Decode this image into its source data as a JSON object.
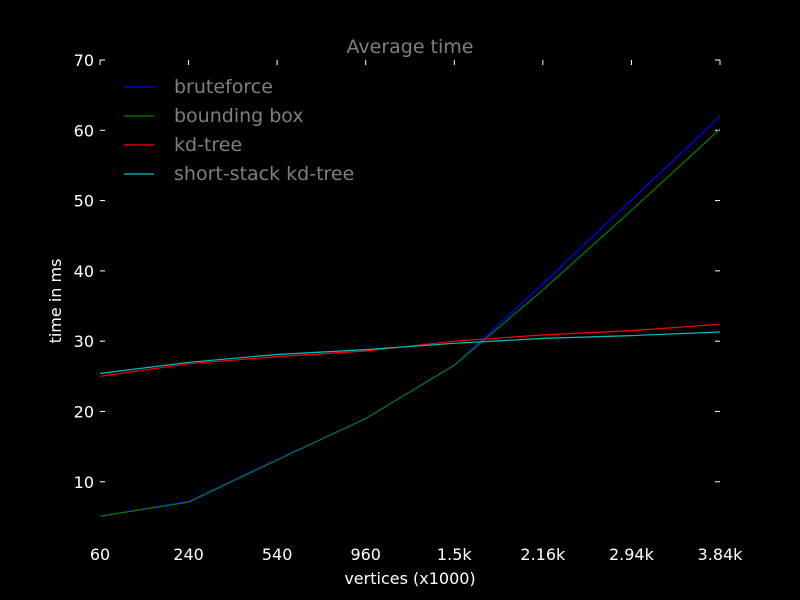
{
  "chart_data": {
    "type": "line",
    "title": "Average time",
    "xlabel": "vertices (x1000)",
    "ylabel": "time in ms",
    "x_tick_labels": [
      "60",
      "240",
      "540",
      "960",
      "1.5k",
      "2.16k",
      "2.94k",
      "3.84k"
    ],
    "x_tick_values": [
      60,
      240,
      540,
      960,
      1500,
      2160,
      2940,
      3840
    ],
    "x_scale": "sqrt",
    "xlim": [
      60,
      3840
    ],
    "y_ticks": [
      10,
      20,
      30,
      40,
      50,
      60,
      70
    ],
    "ylim": [
      2,
      70
    ],
    "grid": false,
    "legend_position": "top-left",
    "series": [
      {
        "name": "bruteforce",
        "color": "#0000ff",
        "x": [
          60,
          240,
          540,
          960,
          1500,
          2160,
          2940,
          3840
        ],
        "y": [
          5.1,
          7.2,
          13.2,
          19.0,
          26.6,
          38.2,
          50.1,
          62.0
        ]
      },
      {
        "name": "bounding box",
        "color": "#008000",
        "x": [
          60,
          240,
          540,
          960,
          1500,
          2160,
          2940,
          3840
        ],
        "y": [
          5.1,
          7.1,
          13.1,
          19.0,
          26.6,
          37.3,
          48.6,
          60.2
        ]
      },
      {
        "name": "kd-tree",
        "color": "#ff0000",
        "x": [
          60,
          240,
          540,
          960,
          1500,
          2160,
          2940,
          3840
        ],
        "y": [
          25.0,
          26.8,
          27.8,
          28.6,
          30.0,
          30.9,
          31.5,
          32.4
        ]
      },
      {
        "name": "short-stack kd-tree",
        "color": "#00bfbf",
        "x": [
          60,
          240,
          540,
          960,
          1500,
          2160,
          2940,
          3840
        ],
        "y": [
          25.4,
          27.0,
          28.1,
          28.8,
          29.7,
          30.4,
          30.8,
          31.3
        ]
      }
    ]
  }
}
